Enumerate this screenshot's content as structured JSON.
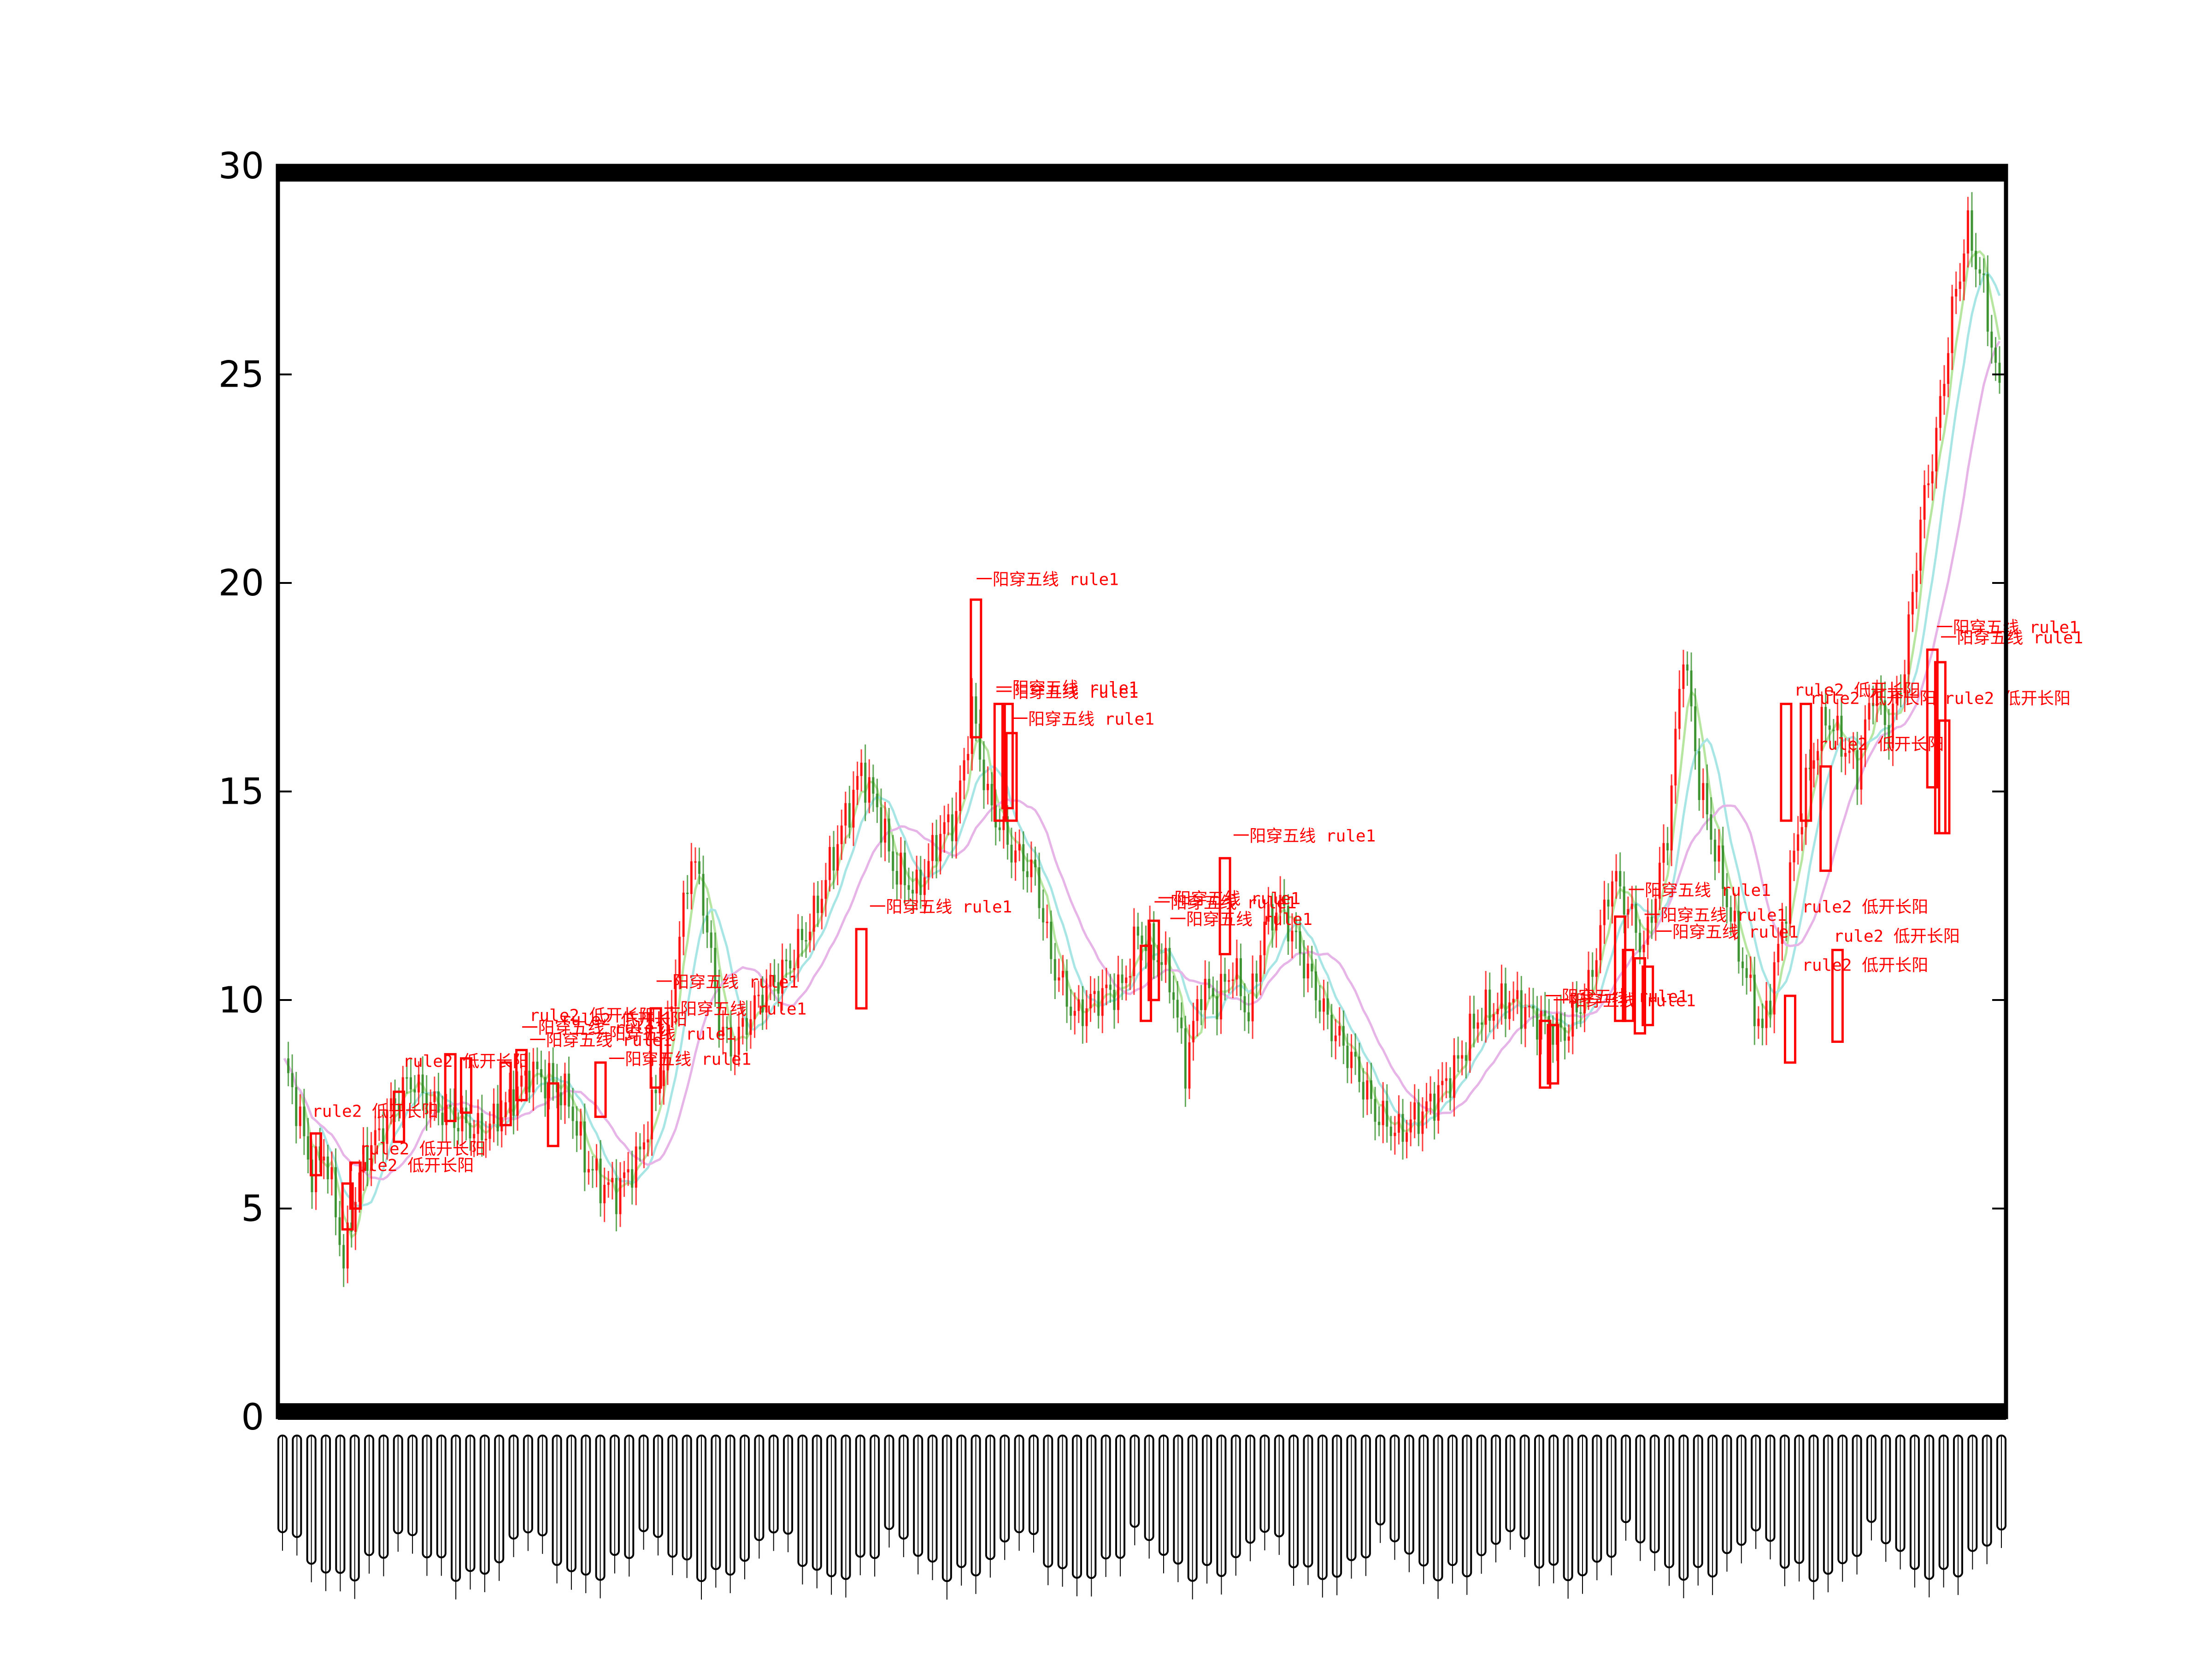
{
  "chart_data": {
    "type": "candlestick",
    "title": "",
    "xlabel": "",
    "ylabel": "",
    "ylim": [
      0,
      30
    ],
    "yticks": [
      0,
      5,
      10,
      15,
      20,
      25,
      30
    ],
    "x_tick_labels_legible": false,
    "colors": {
      "up": "#ff0000",
      "down": "#2e8b22",
      "ma_short": "#b6e6a0",
      "ma_mid": "#a8e6e6",
      "ma_long": "#e7b4e8",
      "annotation": "#ff0000"
    },
    "price_path": [
      [
        0,
        8.4
      ],
      [
        3,
        7.5
      ],
      [
        7,
        5.8
      ],
      [
        10,
        6.4
      ],
      [
        13,
        5.0
      ],
      [
        15,
        3.6
      ],
      [
        17,
        4.8
      ],
      [
        20,
        6.2
      ],
      [
        24,
        6.8
      ],
      [
        28,
        7.6
      ],
      [
        32,
        8.1
      ],
      [
        36,
        7.6
      ],
      [
        42,
        7.2
      ],
      [
        50,
        6.8
      ],
      [
        56,
        7.4
      ],
      [
        62,
        8.3
      ],
      [
        68,
        8.0
      ],
      [
        72,
        7.6
      ],
      [
        76,
        6.2
      ],
      [
        80,
        5.6
      ],
      [
        84,
        5.4
      ],
      [
        90,
        6.3
      ],
      [
        96,
        8.5
      ],
      [
        100,
        11.5
      ],
      [
        103,
        13.5
      ],
      [
        106,
        12.4
      ],
      [
        110,
        9.5
      ],
      [
        113,
        8.8
      ],
      [
        120,
        10.0
      ],
      [
        128,
        10.9
      ],
      [
        134,
        12.0
      ],
      [
        140,
        13.8
      ],
      [
        146,
        15.5
      ],
      [
        150,
        14.6
      ],
      [
        154,
        13.2
      ],
      [
        160,
        12.6
      ],
      [
        166,
        14.0
      ],
      [
        170,
        14.4
      ],
      [
        174,
        17.0
      ],
      [
        178,
        14.8
      ],
      [
        184,
        13.6
      ],
      [
        190,
        13.0
      ],
      [
        194,
        11.0
      ],
      [
        200,
        9.6
      ],
      [
        206,
        10.1
      ],
      [
        212,
        10.3
      ],
      [
        216,
        11.6
      ],
      [
        220,
        11.2
      ],
      [
        224,
        10.6
      ],
      [
        228,
        8.4
      ],
      [
        232,
        10.3
      ],
      [
        236,
        10.0
      ],
      [
        240,
        10.8
      ],
      [
        244,
        9.6
      ],
      [
        248,
        11.8
      ],
      [
        252,
        12.3
      ],
      [
        258,
        10.9
      ],
      [
        264,
        9.5
      ],
      [
        270,
        8.6
      ],
      [
        276,
        7.3
      ],
      [
        282,
        6.8
      ],
      [
        290,
        7.5
      ],
      [
        296,
        8.3
      ],
      [
        302,
        9.6
      ],
      [
        310,
        10.0
      ],
      [
        318,
        9.5
      ],
      [
        324,
        9.2
      ],
      [
        330,
        10.3
      ],
      [
        336,
        13.0
      ],
      [
        340,
        12.2
      ],
      [
        344,
        11.2
      ],
      [
        350,
        14.0
      ],
      [
        354,
        18.5
      ],
      [
        358,
        15.2
      ],
      [
        362,
        13.6
      ],
      [
        366,
        12.0
      ],
      [
        370,
        10.5
      ],
      [
        374,
        9.2
      ],
      [
        378,
        11.2
      ],
      [
        382,
        13.5
      ],
      [
        386,
        15.6
      ],
      [
        390,
        16.8
      ],
      [
        394,
        16.2
      ],
      [
        398,
        15.5
      ],
      [
        402,
        17.5
      ],
      [
        406,
        16.4
      ],
      [
        410,
        18.0
      ],
      [
        414,
        21.5
      ],
      [
        418,
        23.5
      ],
      [
        422,
        26.5
      ],
      [
        426,
        28.5
      ],
      [
        430,
        27.0
      ],
      [
        434,
        24.5
      ]
    ],
    "annotations": [
      {
        "text": "一阳穿五线 rule1",
        "x": 175,
        "y": 19.95
      },
      {
        "text": "一阳穿五线 rule1",
        "x": 180,
        "y": 17.35
      },
      {
        "text": "一阳穿五线 rule1",
        "x": 180,
        "y": 17.25
      },
      {
        "text": "一阳穿五线 rule1",
        "x": 184,
        "y": 16.6
      },
      {
        "text": "一阳穿五线 rule1",
        "x": 148,
        "y": 12.1
      },
      {
        "text": "一阳穿五线 rule1",
        "x": 240,
        "y": 13.8
      },
      {
        "text": "一阳穿五线 rule1",
        "x": 221,
        "y": 12.3
      },
      {
        "text": "一阳穿五线 rule1",
        "x": 220,
        "y": 12.2
      },
      {
        "text": "一阳穿五线 rule1",
        "x": 224,
        "y": 11.8
      },
      {
        "text": "一阳穿五线 rule1",
        "x": 94,
        "y": 10.3
      },
      {
        "text": "一阳穿五线 rule1",
        "x": 96,
        "y": 9.65
      },
      {
        "text": "一阳穿五线 rule1",
        "x": 78,
        "y": 9.05
      },
      {
        "text": "一阳穿五线 rule1",
        "x": 60,
        "y": 9.2
      },
      {
        "text": "一阳穿五线 rule1",
        "x": 62,
        "y": 8.9
      },
      {
        "text": "一阳穿五线 rule1",
        "x": 82,
        "y": 8.45
      },
      {
        "text": "rule2 低开长阳",
        "x": 7,
        "y": 7.2
      },
      {
        "text": "rule2 低开长阳",
        "x": 19,
        "y": 6.3
      },
      {
        "text": "rule2 低开长阳",
        "x": 16,
        "y": 5.9
      },
      {
        "text": "rule2 低开长阳",
        "x": 30,
        "y": 8.4
      },
      {
        "text": "rule2 低开长阳",
        "x": 62,
        "y": 9.5
      },
      {
        "text": "rule2 低开长阳",
        "x": 70,
        "y": 9.4
      },
      {
        "text": "一阳穿五线 rule1",
        "x": 340,
        "y": 12.5
      },
      {
        "text": "一阳穿五线 rule1",
        "x": 344,
        "y": 11.9
      },
      {
        "text": "一阳穿五线 rule1",
        "x": 347,
        "y": 11.5
      },
      {
        "text": "一阳穿五线 rule1",
        "x": 319,
        "y": 9.95
      },
      {
        "text": "一阳穿五线 rule1",
        "x": 321,
        "y": 9.85
      },
      {
        "text": "rule2 低开长阳",
        "x": 382,
        "y": 17.3
      },
      {
        "text": "rule2 低开长阳",
        "x": 386,
        "y": 17.1
      },
      {
        "text": "rule2 低开长阳",
        "x": 388,
        "y": 16.0
      },
      {
        "text": "rule2 低开长阳",
        "x": 384,
        "y": 12.1
      },
      {
        "text": "rule2 低开长阳",
        "x": 392,
        "y": 11.4
      },
      {
        "text": "rule2 低开长阳",
        "x": 384,
        "y": 10.7
      },
      {
        "text": "rule2 低开长阳",
        "x": 420,
        "y": 17.1
      },
      {
        "text": "一阳穿五线 rule1",
        "x": 418,
        "y": 18.8
      },
      {
        "text": "一阳穿五线 rule1",
        "x": 419,
        "y": 18.55
      }
    ],
    "highlight_boxes": [
      {
        "x": 8,
        "low": 5.8,
        "high": 6.8
      },
      {
        "x": 16,
        "low": 4.5,
        "high": 5.6
      },
      {
        "x": 18,
        "low": 5.0,
        "high": 6.1
      },
      {
        "x": 29,
        "low": 6.6,
        "high": 7.8
      },
      {
        "x": 42,
        "low": 7.1,
        "high": 8.7
      },
      {
        "x": 46,
        "low": 7.3,
        "high": 8.6
      },
      {
        "x": 56,
        "low": 7.0,
        "high": 8.5
      },
      {
        "x": 60,
        "low": 7.6,
        "high": 8.8
      },
      {
        "x": 68,
        "low": 6.5,
        "high": 8.0
      },
      {
        "x": 80,
        "low": 7.2,
        "high": 8.5
      },
      {
        "x": 94,
        "low": 7.9,
        "high": 9.8
      },
      {
        "x": 146,
        "low": 9.8,
        "high": 11.7
      },
      {
        "x": 175,
        "low": 16.3,
        "high": 19.6
      },
      {
        "x": 181,
        "low": 14.3,
        "high": 17.1
      },
      {
        "x": 183,
        "low": 14.6,
        "high": 17.1
      },
      {
        "x": 184,
        "low": 14.3,
        "high": 16.4
      },
      {
        "x": 218,
        "low": 9.5,
        "high": 11.3
      },
      {
        "x": 220,
        "low": 10.0,
        "high": 11.9
      },
      {
        "x": 238,
        "low": 11.1,
        "high": 13.4
      },
      {
        "x": 319,
        "low": 7.9,
        "high": 9.5
      },
      {
        "x": 321,
        "low": 8.0,
        "high": 9.4
      },
      {
        "x": 338,
        "low": 9.5,
        "high": 12.0
      },
      {
        "x": 340,
        "low": 9.5,
        "high": 11.2
      },
      {
        "x": 343,
        "low": 9.2,
        "high": 11.0
      },
      {
        "x": 345,
        "low": 9.4,
        "high": 10.8
      },
      {
        "x": 380,
        "low": 14.3,
        "high": 17.1
      },
      {
        "x": 385,
        "low": 14.3,
        "high": 17.1
      },
      {
        "x": 381,
        "low": 8.5,
        "high": 10.1
      },
      {
        "x": 390,
        "low": 13.1,
        "high": 15.6
      },
      {
        "x": 393,
        "low": 9.0,
        "high": 11.2
      },
      {
        "x": 417,
        "low": 15.1,
        "high": 18.4
      },
      {
        "x": 419,
        "low": 14.0,
        "high": 18.1
      },
      {
        "x": 420,
        "low": 14.0,
        "high": 16.7
      }
    ]
  }
}
